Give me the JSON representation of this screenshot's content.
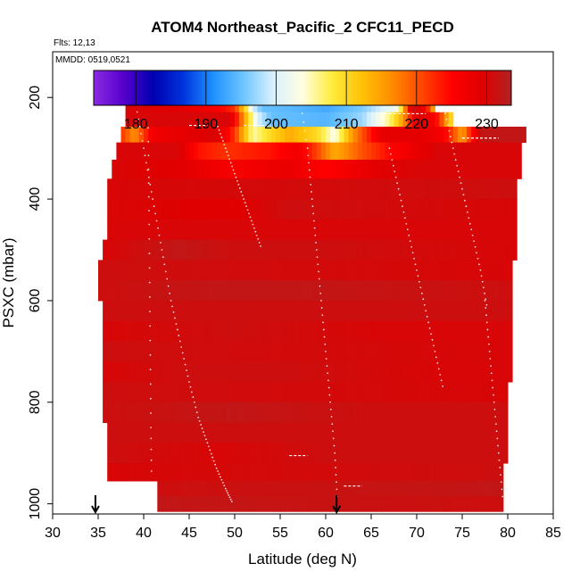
{
  "chart_data": {
    "type": "heatmap",
    "title": "ATOM4 Northeast_Pacific_2 CFC11_PECD",
    "annotations": [
      "Flts: 12,13",
      "MMDD: 0519,0521"
    ],
    "xlabel": "Latitude (deg N)",
    "ylabel": "PSXC (mbar)",
    "xlim": [
      30,
      85
    ],
    "ylim": [
      1020,
      110
    ],
    "y_reversed": true,
    "xticks": [
      30,
      35,
      40,
      45,
      50,
      55,
      60,
      65,
      70,
      75,
      80,
      85
    ],
    "yticks": [
      200,
      400,
      600,
      800,
      1000
    ],
    "colorbar": {
      "range": [
        174,
        233.5
      ],
      "ticks": [
        180,
        190,
        200,
        210,
        220,
        230
      ],
      "colors": [
        "#8B2BE2",
        "#5500CC",
        "#0000B0",
        "#0033DD",
        "#1E90FF",
        "#6CC4FF",
        "#D8F0FF",
        "#FFFFE0",
        "#FFEB3B",
        "#FFC107",
        "#FF8C00",
        "#FF4500",
        "#FF0000",
        "#E00000",
        "#B22222"
      ]
    },
    "profile_markers_lat": [
      34.7,
      61.2
    ],
    "rows": [
      {
        "p": 185,
        "xmin": 38.5,
        "xmax": 68.5,
        "stops": [
          [
            38.5,
            232
          ],
          [
            41,
            228
          ],
          [
            43,
            224
          ],
          [
            45,
            221
          ],
          [
            47,
            217
          ],
          [
            49,
            212
          ],
          [
            51,
            207
          ],
          [
            53,
            200
          ],
          [
            55,
            196
          ],
          [
            57,
            193
          ],
          [
            59,
            190
          ],
          [
            61,
            187
          ],
          [
            63,
            183
          ],
          [
            66,
            180
          ],
          [
            68.5,
            186
          ]
        ]
      },
      {
        "p": 215,
        "xmin": 38,
        "xmax": 72,
        "stops": [
          [
            38,
            230
          ],
          [
            44,
            229
          ],
          [
            48,
            226
          ],
          [
            50,
            222
          ],
          [
            51,
            212
          ],
          [
            52,
            200
          ],
          [
            53,
            195
          ],
          [
            57,
            194
          ],
          [
            60,
            193
          ],
          [
            64,
            196
          ],
          [
            68,
            203
          ],
          [
            69.5,
            232
          ],
          [
            71,
            226
          ],
          [
            72,
            212
          ]
        ]
      },
      {
        "p": 243,
        "xmin": 38,
        "xmax": 74,
        "stops": [
          [
            38,
            230
          ],
          [
            49.5,
            230
          ],
          [
            50.5,
            221
          ],
          [
            51.5,
            210
          ],
          [
            52.5,
            200
          ],
          [
            54,
            195
          ],
          [
            60,
            194
          ],
          [
            64,
            197
          ],
          [
            67,
            206
          ],
          [
            68.5,
            215
          ],
          [
            70,
            230
          ],
          [
            72,
            226
          ],
          [
            73,
            218
          ],
          [
            74,
            208
          ]
        ]
      },
      {
        "p": 272,
        "xmin": 37.5,
        "xmax": 82,
        "stops": [
          [
            37.5,
            222
          ],
          [
            39,
            216
          ],
          [
            41,
            227
          ],
          [
            48,
            230
          ],
          [
            50,
            222
          ],
          [
            52,
            205
          ],
          [
            54,
            210
          ],
          [
            56,
            214
          ],
          [
            59,
            210
          ],
          [
            61,
            203
          ],
          [
            63,
            216
          ],
          [
            66,
            228
          ],
          [
            70,
            229
          ],
          [
            73,
            226
          ],
          [
            75,
            215
          ],
          [
            77,
            232
          ],
          [
            82,
            232
          ]
        ]
      },
      {
        "p": 305,
        "xmin": 37,
        "xmax": 81.5,
        "stops": [
          [
            37,
            230
          ],
          [
            44,
            230
          ],
          [
            46,
            224
          ],
          [
            49,
            222
          ],
          [
            54,
            224
          ],
          [
            57,
            227
          ],
          [
            59,
            221
          ],
          [
            61,
            214
          ],
          [
            64,
            220
          ],
          [
            68,
            226
          ],
          [
            72,
            230
          ],
          [
            81.5,
            230
          ]
        ]
      },
      {
        "p": 340,
        "xmin": 36.5,
        "xmax": 81.5,
        "stops": [
          [
            36.5,
            230
          ],
          [
            44,
            229
          ],
          [
            50,
            226
          ],
          [
            56,
            228
          ],
          [
            60,
            225
          ],
          [
            66,
            229
          ],
          [
            70,
            230
          ],
          [
            81.5,
            230
          ]
        ]
      },
      {
        "p": 380,
        "xmin": 36,
        "xmax": 81,
        "stops": [
          [
            36,
            230
          ],
          [
            81,
            231
          ]
        ]
      },
      {
        "p": 420,
        "xmin": 36,
        "xmax": 81,
        "stops": [
          [
            36,
            230
          ],
          [
            50,
            229
          ],
          [
            56,
            231
          ],
          [
            81,
            230
          ]
        ]
      },
      {
        "p": 460,
        "xmin": 36,
        "xmax": 81,
        "stops": [
          [
            36,
            230
          ],
          [
            81,
            230
          ]
        ]
      },
      {
        "p": 500,
        "xmin": 35.5,
        "xmax": 81,
        "stops": [
          [
            35.5,
            230
          ],
          [
            44,
            232
          ],
          [
            50,
            231
          ],
          [
            60,
            231
          ],
          [
            81,
            230
          ]
        ]
      },
      {
        "p": 540,
        "xmin": 35,
        "xmax": 80.5,
        "stops": [
          [
            35,
            231
          ],
          [
            81,
            230
          ]
        ]
      },
      {
        "p": 580,
        "xmin": 35,
        "xmax": 80.5,
        "stops": [
          [
            35,
            231
          ],
          [
            48,
            232
          ],
          [
            57,
            232
          ],
          [
            80.5,
            231
          ]
        ]
      },
      {
        "p": 620,
        "xmin": 35.5,
        "xmax": 80.5,
        "stops": [
          [
            35.5,
            231
          ],
          [
            80.5,
            231
          ]
        ]
      },
      {
        "p": 660,
        "xmin": 35.5,
        "xmax": 80.5,
        "stops": [
          [
            35.5,
            230
          ],
          [
            50,
            231
          ],
          [
            66,
            230
          ],
          [
            80.5,
            230
          ]
        ]
      },
      {
        "p": 700,
        "xmin": 35.5,
        "xmax": 80.5,
        "stops": [
          [
            35.5,
            231
          ],
          [
            80.5,
            230
          ]
        ]
      },
      {
        "p": 740,
        "xmin": 35.5,
        "xmax": 80.5,
        "stops": [
          [
            35.5,
            230
          ],
          [
            45,
            231
          ],
          [
            56,
            231
          ],
          [
            72,
            230
          ],
          [
            80.5,
            230
          ]
        ]
      },
      {
        "p": 780,
        "xmin": 35.5,
        "xmax": 80,
        "stops": [
          [
            35.5,
            231
          ],
          [
            80,
            230
          ]
        ]
      },
      {
        "p": 820,
        "xmin": 35.5,
        "xmax": 80,
        "stops": [
          [
            35.5,
            231
          ],
          [
            50,
            232
          ],
          [
            65,
            231
          ],
          [
            80,
            231
          ]
        ]
      },
      {
        "p": 860,
        "xmin": 36,
        "xmax": 80,
        "stops": [
          [
            36,
            231
          ],
          [
            80,
            231
          ]
        ]
      },
      {
        "p": 900,
        "xmin": 36,
        "xmax": 80,
        "stops": [
          [
            36,
            231
          ],
          [
            48,
            230
          ],
          [
            60,
            231
          ],
          [
            80,
            231
          ]
        ]
      },
      {
        "p": 940,
        "xmin": 36,
        "xmax": 79.5,
        "stops": [
          [
            36,
            230
          ],
          [
            79.5,
            231
          ]
        ]
      },
      {
        "p": 970,
        "xmin": 41.5,
        "xmax": 79.5,
        "stops": [
          [
            41.5,
            231
          ],
          [
            79.5,
            232
          ]
        ]
      },
      {
        "p": 1000,
        "xmin": 41.5,
        "xmax": 79.5,
        "stops": [
          [
            41.5,
            232
          ],
          [
            79.5,
            231
          ]
        ]
      }
    ],
    "flight_tracks": [
      {
        "lat": [
          39,
          40,
          41,
          42,
          43,
          44,
          45,
          46,
          47,
          48,
          49,
          49.8
        ],
        "p": [
          200,
          300,
          400,
          500,
          600,
          680,
          760,
          830,
          880,
          930,
          970,
          1000
        ]
      },
      {
        "lat": [
          40.5,
          40.6,
          40.7,
          40.8,
          40.9
        ],
        "p": [
          260,
          450,
          650,
          850,
          1000
        ]
      },
      {
        "lat": [
          48,
          49,
          50,
          51,
          52,
          53
        ],
        "p": [
          250,
          300,
          350,
          400,
          450,
          500
        ]
      },
      {
        "lat": [
          57,
          58,
          58.5,
          59,
          59.5,
          60,
          60.5,
          61,
          61.3
        ],
        "p": [
          180,
          300,
          400,
          500,
          600,
          700,
          800,
          900,
          1000
        ]
      },
      {
        "lat": [
          67,
          68,
          69,
          70,
          71,
          72,
          73
        ],
        "p": [
          300,
          380,
          460,
          540,
          620,
          700,
          780
        ]
      },
      {
        "lat": [
          73,
          74,
          75,
          76,
          77,
          77.8
        ],
        "p": [
          220,
          300,
          380,
          460,
          540,
          620
        ]
      },
      {
        "lat": [
          77.5,
          78,
          78.5,
          79,
          79.5
        ],
        "p": [
          600,
          700,
          800,
          900,
          1000
        ]
      }
    ],
    "dashed_segments": [
      {
        "lat": [
          64,
          67.5
        ],
        "p": 190
      },
      {
        "lat": [
          66,
          71
        ],
        "p": 232
      },
      {
        "lat": [
          51,
          54
        ],
        "p": 255
      },
      {
        "lat": [
          45,
          47
        ],
        "p": 255
      },
      {
        "lat": [
          75,
          79
        ],
        "p": 280
      },
      {
        "lat": [
          56,
          58
        ],
        "p": 905
      },
      {
        "lat": [
          62,
          64
        ],
        "p": 965
      }
    ]
  }
}
